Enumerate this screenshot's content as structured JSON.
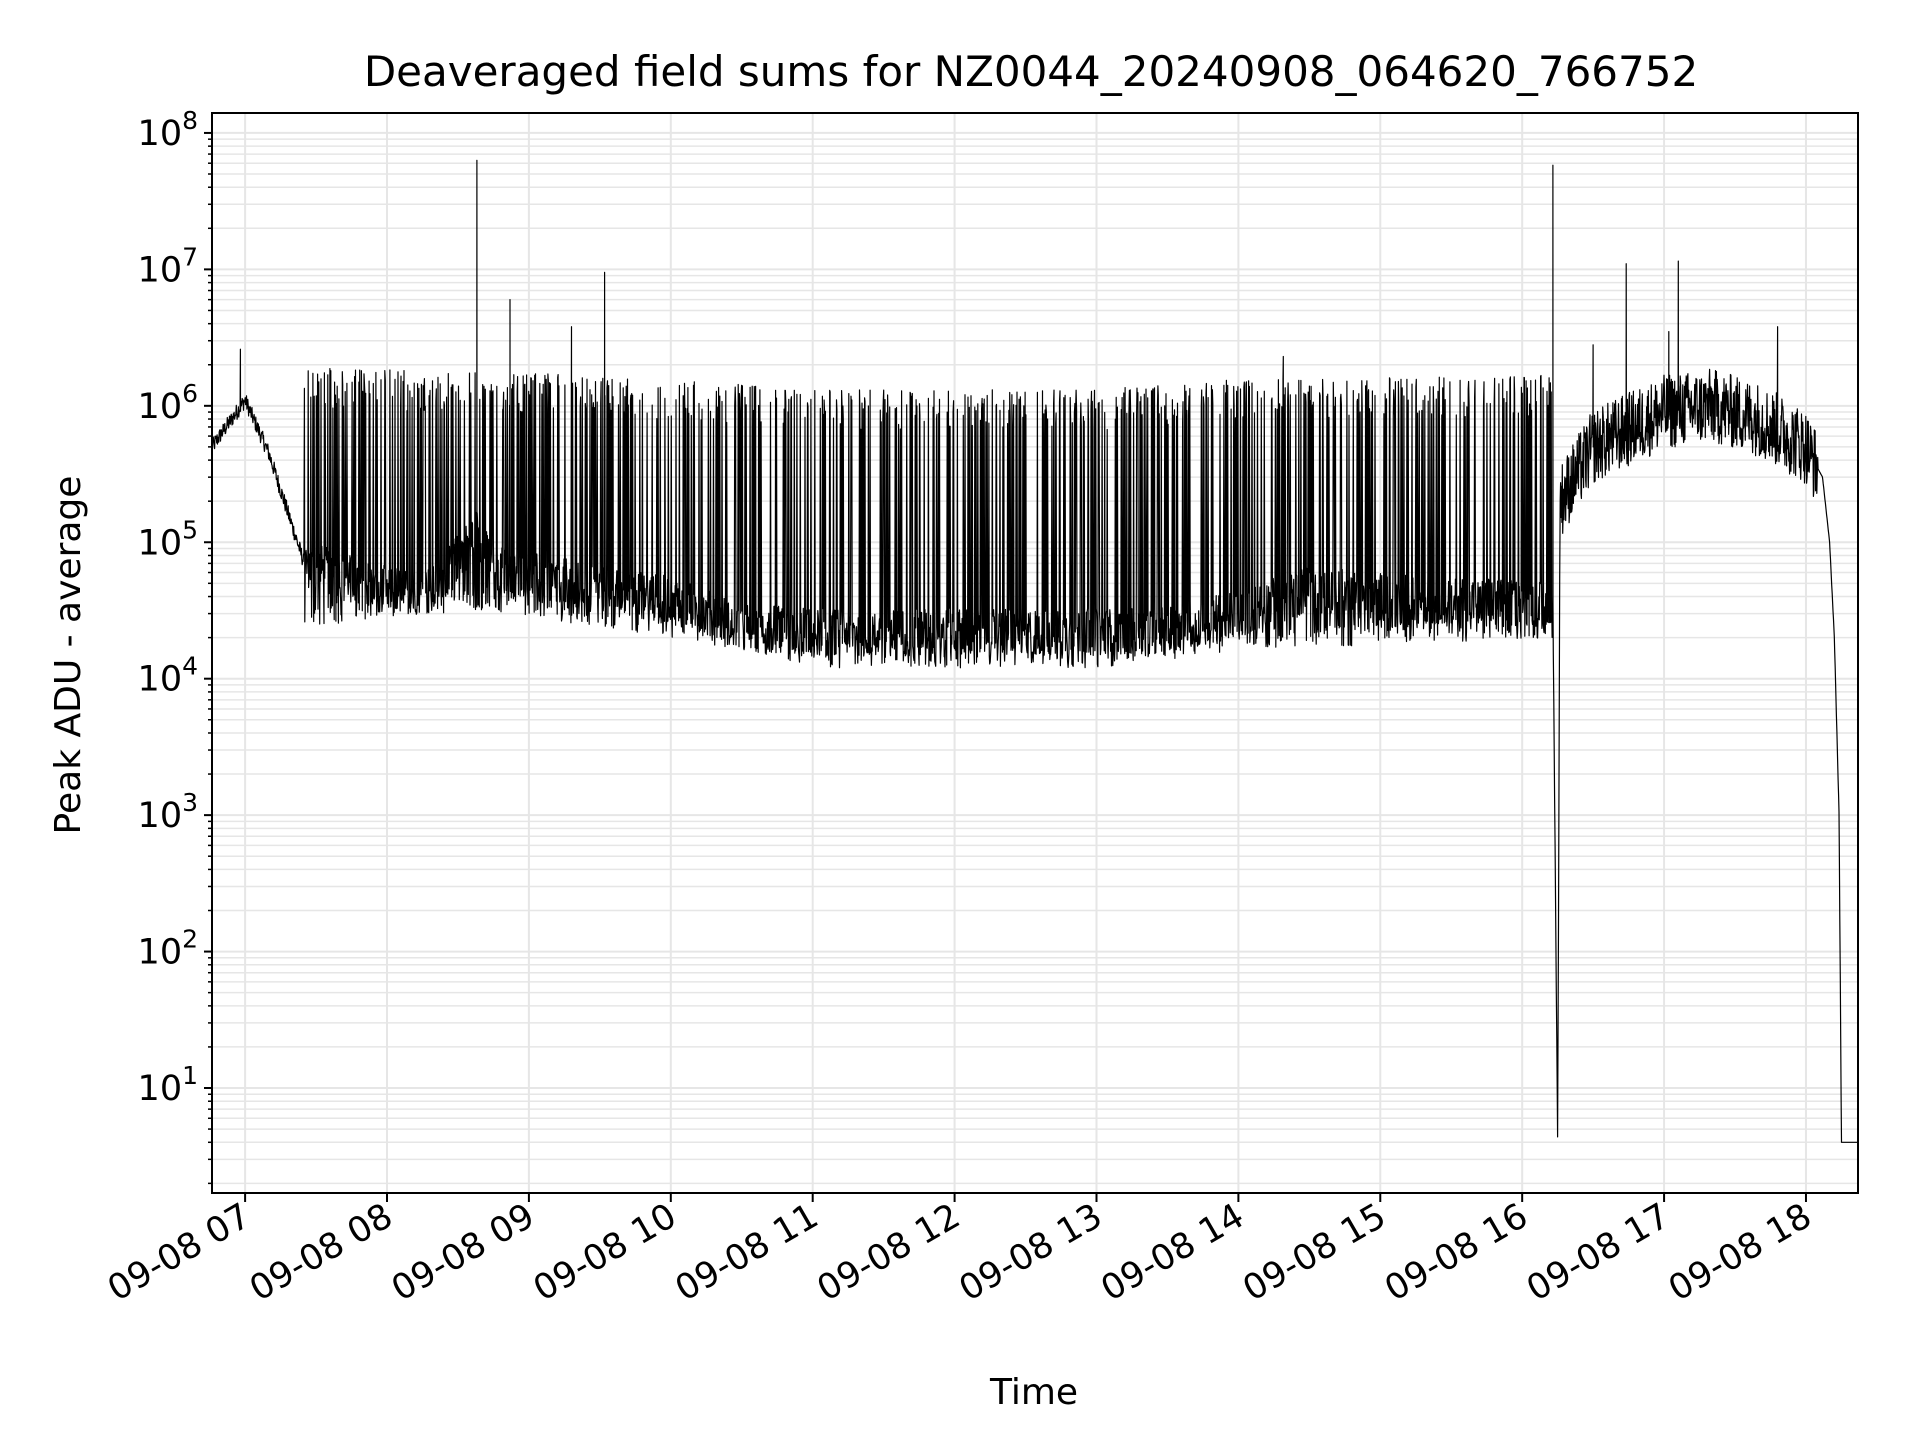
{
  "chart_data": {
    "type": "line",
    "title": "Deaveraged field sums for NZ0044_20240908_064620_766752",
    "xlabel": "Time",
    "ylabel": "Peak ADU - average",
    "yscale": "log",
    "ylim": [
      1.7,
      140000000
    ],
    "xlim": [
      "2024-09-08 06:46",
      "2024-09-08 18:22"
    ],
    "grid": true,
    "line_color": "#000000",
    "grid_color": "#e6e6e6",
    "x_ticks": [
      "09-08 07",
      "09-08 08",
      "09-08 09",
      "09-08 10",
      "09-08 11",
      "09-08 12",
      "09-08 13",
      "09-08 14",
      "09-08 15",
      "09-08 16",
      "09-08 17",
      "09-08 18"
    ],
    "y_ticks": [
      {
        "base": "10",
        "exp": "1"
      },
      {
        "base": "10",
        "exp": "2"
      },
      {
        "base": "10",
        "exp": "3"
      },
      {
        "base": "10",
        "exp": "4"
      },
      {
        "base": "10",
        "exp": "5"
      },
      {
        "base": "10",
        "exp": "6"
      },
      {
        "base": "10",
        "exp": "7"
      },
      {
        "base": "10",
        "exp": "8"
      }
    ],
    "series": [
      {
        "baseline": [
          [
            "2024-09-08 06:46",
            500000
          ],
          [
            "2024-09-08 07:00",
            1100000
          ],
          [
            "2024-09-08 07:10",
            450000
          ],
          [
            "2024-09-08 07:25",
            70000
          ],
          [
            "2024-09-08 08:00",
            45000
          ],
          [
            "2024-09-08 08:20",
            45000
          ],
          [
            "2024-09-08 08:38",
            120000
          ],
          [
            "2024-09-08 08:45",
            65000
          ],
          [
            "2024-09-08 09:30",
            45000
          ],
          [
            "2024-09-08 10:00",
            38000
          ],
          [
            "2024-09-08 10:30",
            24000
          ],
          [
            "2024-09-08 11:00",
            22000
          ],
          [
            "2024-09-08 12:00",
            22000
          ],
          [
            "2024-09-08 13:00",
            22000
          ],
          [
            "2024-09-08 13:30",
            23000
          ],
          [
            "2024-09-08 14:00",
            30000
          ],
          [
            "2024-09-08 14:30",
            45000
          ],
          [
            "2024-09-08 15:00",
            40000
          ],
          [
            "2024-09-08 15:20",
            38000
          ],
          [
            "2024-09-08 16:13",
            35000
          ],
          [
            "2024-09-08 16:15",
            4
          ],
          [
            "2024-09-08 16:16",
            200000
          ],
          [
            "2024-09-08 16:30",
            500000
          ],
          [
            "2024-09-08 17:00",
            900000
          ],
          [
            "2024-09-08 17:20",
            1000000
          ],
          [
            "2024-09-08 17:40",
            800000
          ],
          [
            "2024-09-08 18:00",
            500000
          ],
          [
            "2024-09-08 18:07",
            300000
          ],
          [
            "2024-09-08 18:10",
            100000
          ],
          [
            "2024-09-08 18:12",
            20000
          ],
          [
            "2024-09-08 18:14",
            1000
          ],
          [
            "2024-09-08 18:15",
            4
          ],
          [
            "2024-09-08 18:22",
            4
          ]
        ],
        "upper_envelope": [
          [
            "2024-09-08 07:05",
            1600000
          ],
          [
            "2024-09-08 08:40",
            1500000
          ],
          [
            "2024-09-08 10:00",
            1300000
          ],
          [
            "2024-09-08 11:00",
            1100000
          ],
          [
            "2024-09-08 12:00",
            1100000
          ],
          [
            "2024-09-08 13:00",
            1100000
          ],
          [
            "2024-09-08 14:00",
            1300000
          ],
          [
            "2024-09-08 16:13",
            1400000
          ]
        ],
        "lower_envelope": [
          [
            "2024-09-08 07:25",
            30000
          ],
          [
            "2024-09-08 08:40",
            40000
          ],
          [
            "2024-09-08 10:00",
            25000
          ],
          [
            "2024-09-08 11:00",
            15000
          ],
          [
            "2024-09-08 12:00",
            15000
          ],
          [
            "2024-09-08 13:00",
            15000
          ],
          [
            "2024-09-08 14:00",
            20000
          ],
          [
            "2024-09-08 16:13",
            25000
          ]
        ],
        "spikes": [
          [
            "2024-09-08 06:58",
            2600000
          ],
          [
            "2024-09-08 08:38",
            63000000
          ],
          [
            "2024-09-08 08:52",
            6000000
          ],
          [
            "2024-09-08 09:18",
            3800000
          ],
          [
            "2024-09-08 09:32",
            9500000
          ],
          [
            "2024-09-08 14:19",
            2300000
          ],
          [
            "2024-09-08 16:13",
            58000000
          ],
          [
            "2024-09-08 16:30",
            2800000
          ],
          [
            "2024-09-08 16:44",
            11000000
          ],
          [
            "2024-09-08 17:02",
            3500000
          ],
          [
            "2024-09-08 17:06",
            11500000
          ],
          [
            "2024-09-08 17:48",
            3800000
          ]
        ]
      }
    ]
  }
}
